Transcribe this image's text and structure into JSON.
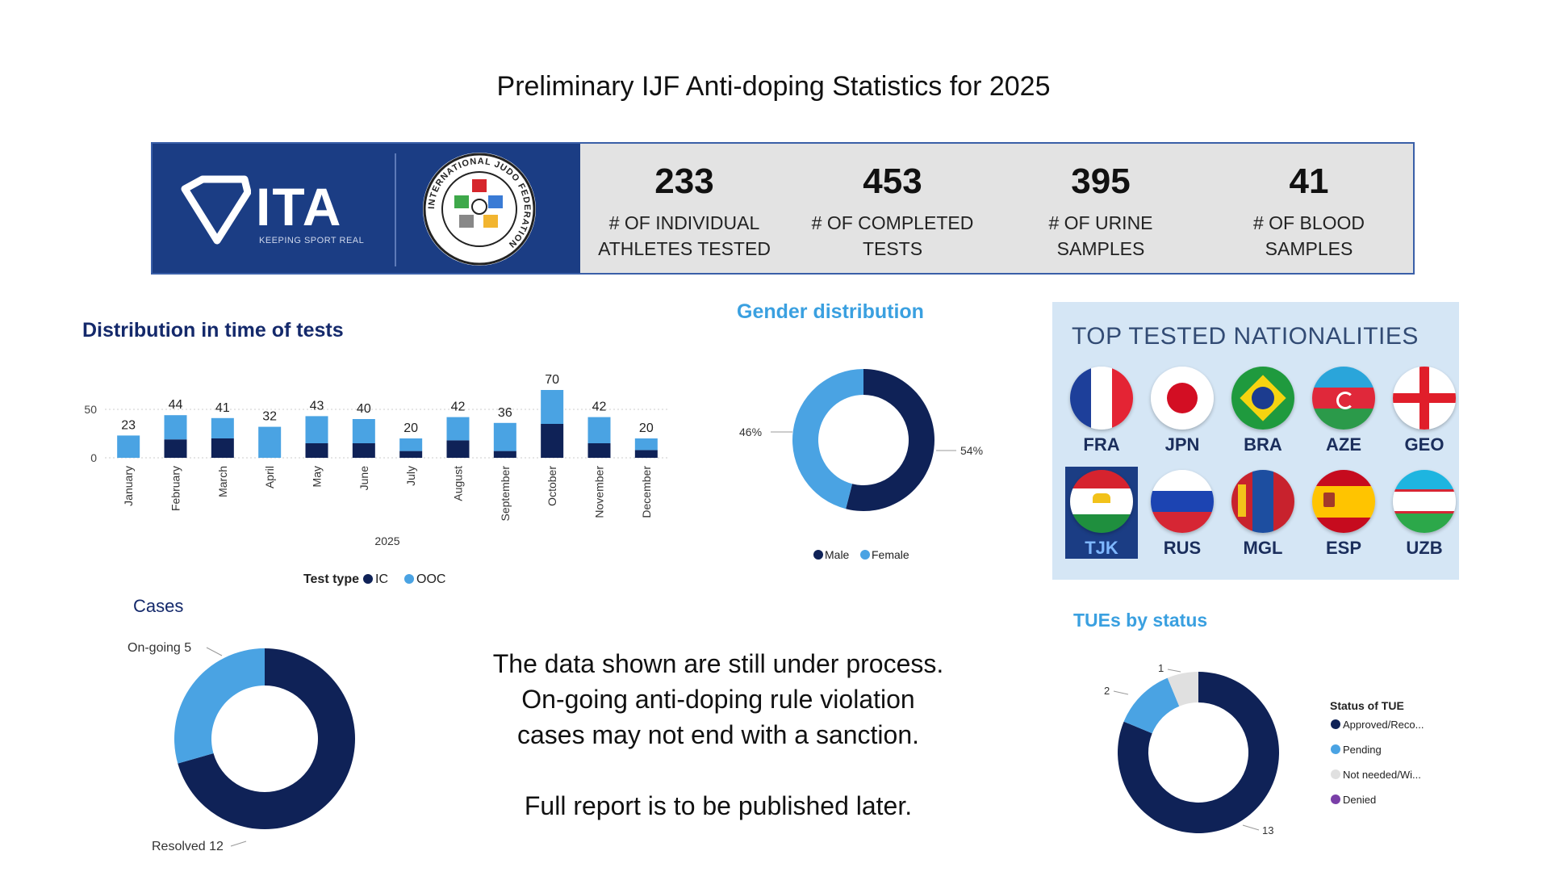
{
  "page_title": "Preliminary IJF Anti-doping Statistics for 2025",
  "banner": {
    "logo_text": "ITA",
    "logo_tagline": "KEEPING SPORT REAL",
    "seal_text": "INTERNATIONAL JUDO FEDERATION",
    "stats": [
      {
        "value": "233",
        "label": "# OF INDIVIDUAL\nATHLETES TESTED"
      },
      {
        "value": "453",
        "label": "# OF COMPLETED\nTESTS"
      },
      {
        "value": "395",
        "label": "# OF URINE\nSAMPLES"
      },
      {
        "value": "41",
        "label": "# OF BLOOD\nSAMPLES"
      }
    ]
  },
  "time_chart": {
    "title": "Distribution in time of tests",
    "year_label": "2025",
    "legend_title": "Test type",
    "legend_ic": "IC",
    "legend_ooc": "OOC"
  },
  "gender_chart": {
    "title": "Gender distribution",
    "male_pct_label": "54%",
    "female_pct_label": "46%",
    "legend_male": "Male",
    "legend_female": "Female"
  },
  "nationalities": {
    "title": "TOP TESTED NATIONALITIES",
    "codes": [
      "FRA",
      "JPN",
      "BRA",
      "AZE",
      "GEO",
      "TJK",
      "RUS",
      "MGL",
      "ESP",
      "UZB"
    ],
    "selected": "TJK"
  },
  "cases_chart": {
    "title": "Cases",
    "ongoing_label": "On-going 5",
    "resolved_label": "Resolved 12"
  },
  "message": {
    "line1": "The data shown are still under process.",
    "line2": "On-going anti-doping rule violation",
    "line3": "cases may not end with a sanction.",
    "line4": "Full report is to be published later."
  },
  "tue_chart": {
    "title": "TUEs by status",
    "legend_title": "Status of TUE",
    "legend_items": [
      "Approved/Reco...",
      "Pending",
      "Not needed/Wi...",
      "Denied"
    ],
    "value_labels": [
      "1",
      "2",
      "13"
    ]
  },
  "colors": {
    "dark_navy": "#0f2257",
    "light_blue": "#4aa3e3",
    "grey": "#e0e0e0",
    "purple": "#7a3fa8",
    "banner_blue": "#1b3d84"
  },
  "chart_data": [
    {
      "type": "bar",
      "title": "Distribution in time of tests",
      "xlabel": "2025",
      "categories": [
        "January",
        "February",
        "March",
        "April",
        "May",
        "June",
        "July",
        "August",
        "September",
        "October",
        "November",
        "December"
      ],
      "series": [
        {
          "name": "IC",
          "values": [
            0,
            19,
            20,
            0,
            15,
            15,
            7,
            18,
            7,
            35,
            15,
            8
          ]
        },
        {
          "name": "OOC",
          "values": [
            23,
            25,
            21,
            32,
            28,
            25,
            13,
            24,
            29,
            35,
            27,
            12
          ]
        }
      ],
      "totals": [
        23,
        44,
        41,
        32,
        43,
        40,
        20,
        42,
        36,
        70,
        42,
        20
      ],
      "yticks": [
        0,
        50
      ],
      "ylim": [
        0,
        75
      ],
      "legend_title": "Test type",
      "legend_position": "bottom",
      "stacked": true
    },
    {
      "type": "pie",
      "title": "Gender distribution",
      "labels": [
        "Male",
        "Female"
      ],
      "values": [
        54,
        46
      ],
      "value_labels": [
        "54%",
        "46%"
      ],
      "donut": true,
      "legend_position": "bottom"
    },
    {
      "type": "pie",
      "title": "Cases",
      "labels": [
        "On-going",
        "Resolved"
      ],
      "values": [
        5,
        12
      ],
      "donut": true
    },
    {
      "type": "pie",
      "title": "TUEs by status",
      "labels": [
        "Approved/Reco...",
        "Pending",
        "Not needed/Wi...",
        "Denied"
      ],
      "values": [
        13,
        2,
        1,
        0
      ],
      "donut": true,
      "legend_title": "Status of TUE",
      "legend_position": "right"
    }
  ]
}
